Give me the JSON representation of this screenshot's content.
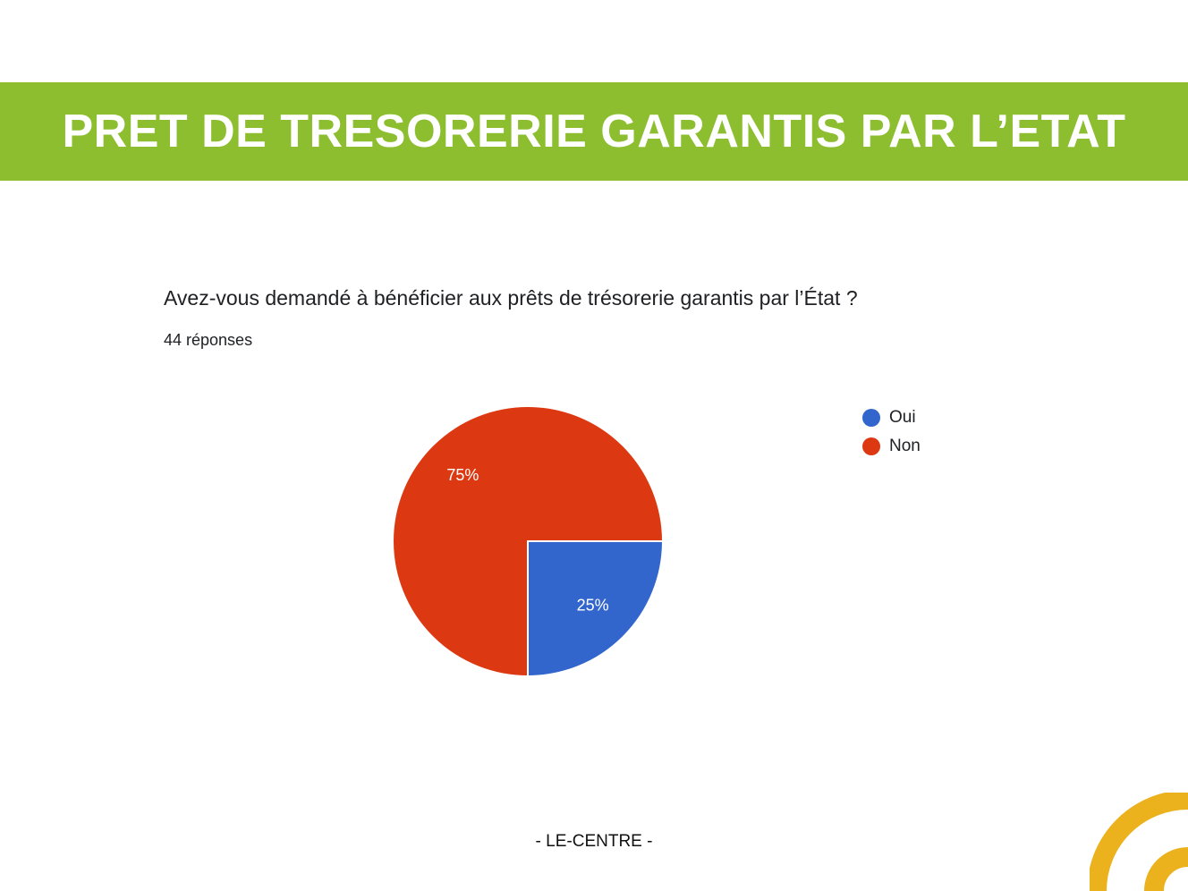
{
  "banner": {
    "title": "PRET DE TRESORERIE GARANTIS PAR L’ETAT",
    "color": "#8cbe2f"
  },
  "survey": {
    "question": "Avez-vous demandé à bénéficier aux prêts de trésorerie garantis par l’État ?",
    "responses": "44 réponses"
  },
  "chart_data": {
    "type": "pie",
    "categories": [
      "Oui",
      "Non"
    ],
    "values": [
      25,
      75
    ],
    "labels": [
      "25%",
      "75%"
    ],
    "colors": [
      "#3366cc",
      "#dc3912"
    ],
    "legend_position": "right"
  },
  "footer": {
    "text": "- LE-CENTRE -"
  },
  "logo": {
    "icon": "yellow-arc-logo-icon",
    "color": "#ebb21e"
  }
}
